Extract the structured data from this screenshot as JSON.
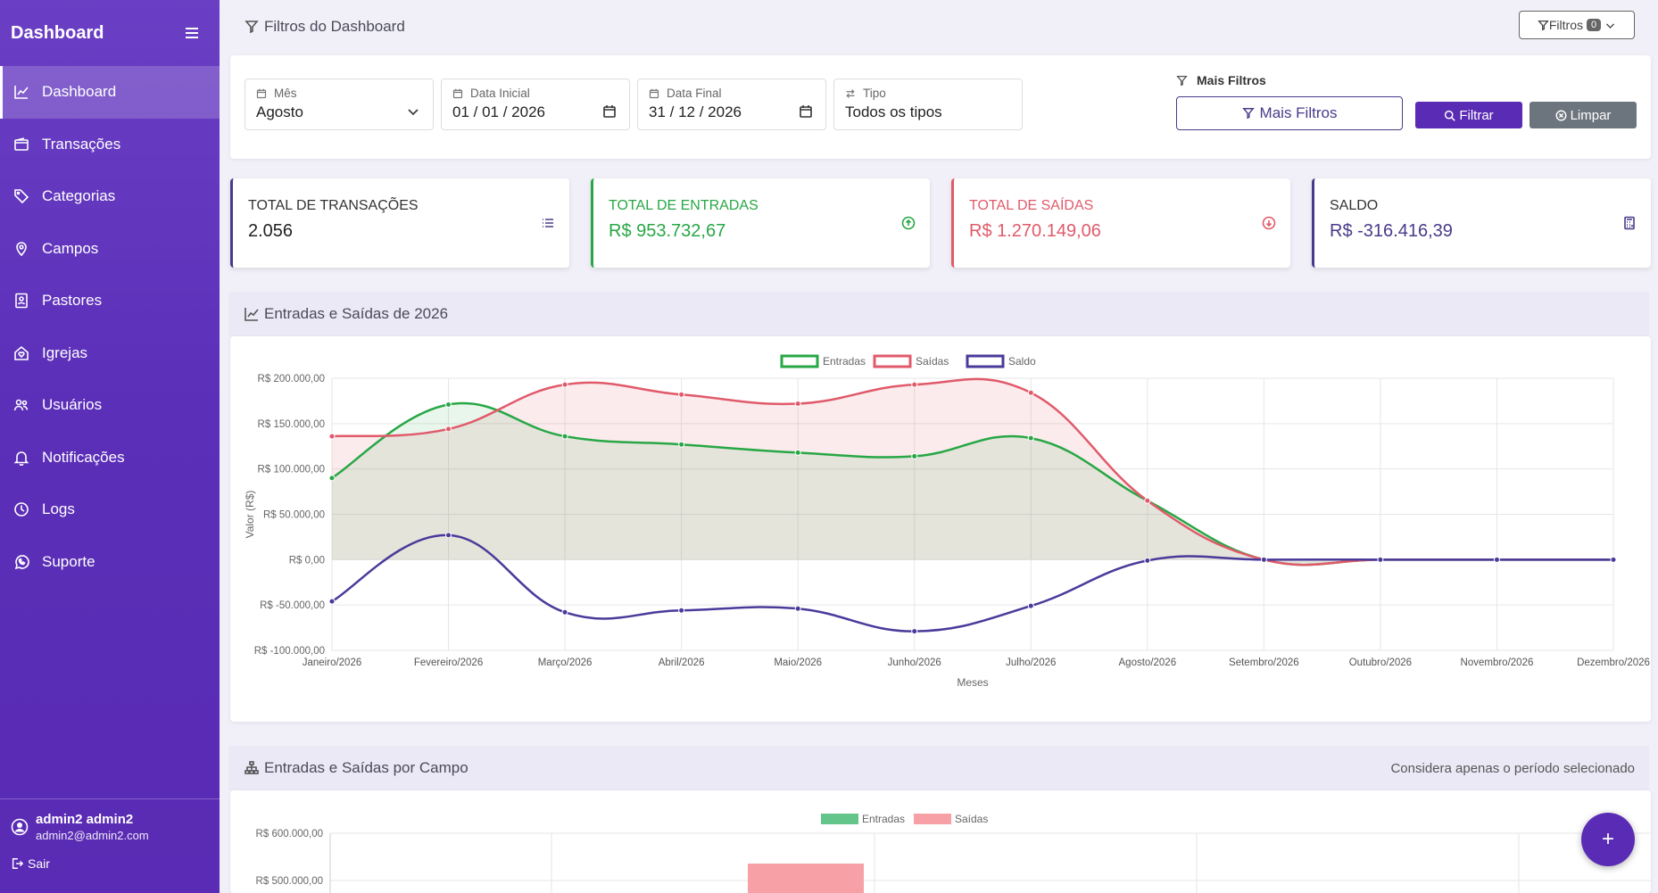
{
  "sidebar": {
    "brand": "Dashboard",
    "items": [
      {
        "label": "Dashboard",
        "icon": "chart-line-icon",
        "active": true
      },
      {
        "label": "Transações",
        "icon": "wallet-icon"
      },
      {
        "label": "Categorias",
        "icon": "tags-icon"
      },
      {
        "label": "Campos",
        "icon": "map-pin-icon"
      },
      {
        "label": "Pastores",
        "icon": "badge-icon"
      },
      {
        "label": "Igrejas",
        "icon": "house-heart-icon"
      },
      {
        "label": "Usuários",
        "icon": "people-icon"
      },
      {
        "label": "Notificações",
        "icon": "bell-icon"
      },
      {
        "label": "Logs",
        "icon": "clock-icon"
      },
      {
        "label": "Suporte",
        "icon": "whatsapp-icon"
      }
    ],
    "user": {
      "name": "admin2 admin2",
      "email": "admin2@admin2.com",
      "logout": "Sair"
    }
  },
  "filters": {
    "title": "Filtros do Dashboard",
    "toggle_label": "Filtros",
    "toggle_count": "0",
    "mes": {
      "label": "Mês",
      "value": "Agosto"
    },
    "data_inicial": {
      "label": "Data Inicial",
      "value": "01 / 01 / 2026"
    },
    "data_final": {
      "label": "Data Final",
      "value": "31 / 12 / 2026"
    },
    "tipo": {
      "label": "Tipo",
      "value": "Todos os tipos"
    },
    "mais_filtros_label": "Mais Filtros",
    "mais_filtros_button": "Mais Filtros",
    "filtrar": "Filtrar",
    "limpar": "Limpar"
  },
  "stats": [
    {
      "label": "TOTAL DE TRANSAÇÕES",
      "value": "2.056",
      "color": "#4a3a8a",
      "text_color": "#333333"
    },
    {
      "label": "TOTAL DE ENTRADAS",
      "value": "R$ 953.732,67",
      "color": "#28a745",
      "text_color": "#28a745"
    },
    {
      "label": "TOTAL DE SAÍDAS",
      "value": "R$ 1.270.149,06",
      "color": "#e05a6a",
      "text_color": "#e05a6a"
    },
    {
      "label": "SALDO",
      "value": "R$ -316.416,39",
      "color": "#4a3a8a",
      "text_color": "#4a3a8a"
    }
  ],
  "line_chart_title": "Entradas e Saídas de 2026",
  "bar_chart_title": "Entradas e Saídas por Campo",
  "bar_chart_note": "Considera apenas o período selecionado",
  "fab_label": "+",
  "chart_data": [
    {
      "type": "line",
      "xlabel": "Meses",
      "ylabel": "Valor (R$)",
      "ylim": [
        -100000,
        200000
      ],
      "yticks": [
        "R$ 200.000,00",
        "R$ 150.000,00",
        "R$ 100.000,00",
        "R$ 50.000,00",
        "R$ 0,00",
        "R$ -50.000,00",
        "R$ -100.000,00"
      ],
      "categories": [
        "Janeiro/2026",
        "Fevereiro/2026",
        "Março/2026",
        "Abril/2026",
        "Maio/2026",
        "Junho/2026",
        "Julho/2026",
        "Agosto/2026",
        "Setembro/2026",
        "Outubro/2026",
        "Novembro/2026",
        "Dezembro/2026"
      ],
      "legend_position": "top",
      "grid": true,
      "series": [
        {
          "name": "Entradas",
          "color": "#28a745",
          "fill": "rgba(40,167,69,0.10)",
          "values": [
            90000,
            171000,
            136000,
            127000,
            118000,
            114000,
            134000,
            65000,
            0,
            0,
            0,
            0
          ]
        },
        {
          "name": "Saídas",
          "color": "#e05a6a",
          "fill": "rgba(224,90,106,0.12)",
          "values": [
            136000,
            144000,
            193000,
            182000,
            172000,
            193000,
            184000,
            65000,
            0,
            0,
            0,
            0
          ]
        },
        {
          "name": "Saldo",
          "color": "#4a3a9a",
          "fill": "none",
          "values": [
            -46000,
            27000,
            -58000,
            -56000,
            -54000,
            -79000,
            -51000,
            -1000,
            0,
            0,
            0,
            0
          ]
        }
      ]
    },
    {
      "type": "bar",
      "ylim": [
        0,
        600000
      ],
      "yticks": [
        "R$ 600.000,00",
        "R$ 500.000,00"
      ],
      "legend_position": "top",
      "series": [
        {
          "name": "Entradas",
          "color": "#63c58a"
        },
        {
          "name": "Saídas",
          "color": "#f7a1a6"
        }
      ]
    }
  ]
}
